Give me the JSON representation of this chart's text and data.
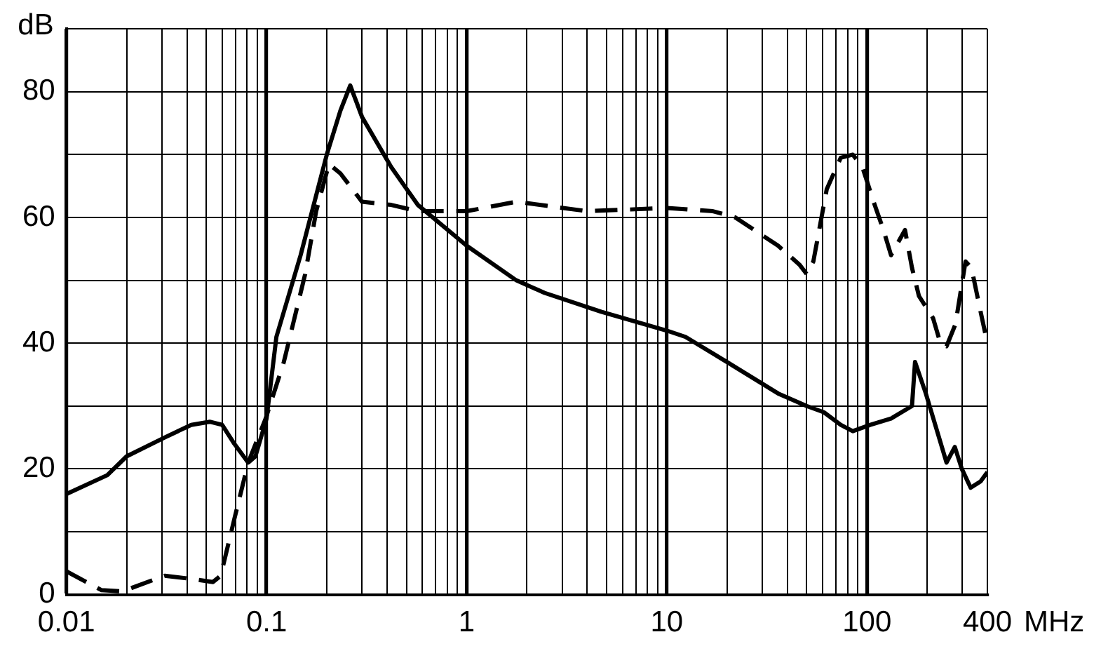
{
  "chart_data": {
    "type": "line",
    "xlabel": "MHz",
    "ylabel": "dB",
    "log": "x",
    "grid": true,
    "legend": false,
    "marker": "none",
    "xlim": [
      0.01,
      400
    ],
    "ylim": [
      0,
      90
    ],
    "xticks": [
      0.01,
      {
        "value": 0.02,
        "label": null
      },
      {
        "value": 0.03,
        "label": null
      },
      {
        "value": 0.04,
        "label": null
      },
      {
        "value": 0.05,
        "label": null
      },
      {
        "value": 0.06,
        "label": null
      },
      {
        "value": 0.07,
        "label": null
      },
      {
        "value": 0.08,
        "label": null
      },
      {
        "value": 0.09,
        "label": null
      },
      0.1,
      {
        "value": 0.2,
        "label": null
      },
      {
        "value": 0.3,
        "label": null
      },
      {
        "value": 0.4,
        "label": null
      },
      {
        "value": 0.5,
        "label": null
      },
      {
        "value": 0.6,
        "label": null
      },
      {
        "value": 0.7,
        "label": null
      },
      {
        "value": 0.8,
        "label": null
      },
      {
        "value": 0.9,
        "label": null
      },
      1,
      {
        "value": 2,
        "label": null
      },
      {
        "value": 3,
        "label": null
      },
      {
        "value": 4,
        "label": null
      },
      {
        "value": 5,
        "label": null
      },
      {
        "value": 6,
        "label": null
      },
      {
        "value": 7,
        "label": null
      },
      {
        "value": 8,
        "label": null
      },
      {
        "value": 9,
        "label": null
      },
      10,
      {
        "value": 20,
        "label": null
      },
      {
        "value": 30,
        "label": null
      },
      {
        "value": 40,
        "label": null
      },
      {
        "value": 50,
        "label": null
      },
      {
        "value": 60,
        "label": null
      },
      {
        "value": 70,
        "label": null
      },
      {
        "value": 80,
        "label": null
      },
      {
        "value": 90,
        "label": null
      },
      100,
      {
        "value": 200,
        "label": null
      },
      {
        "value": 300,
        "label": null
      },
      400
    ],
    "yticks": [
      0,
      {
        "value": 10,
        "label": null
      },
      20,
      {
        "value": 30,
        "label": null
      },
      40,
      {
        "value": 50,
        "label": null
      },
      60,
      {
        "value": 70,
        "label": null
      },
      80,
      {
        "value": 90,
        "label": null
      }
    ],
    "series": [
      {
        "color": "#000000",
        "line_style": "solid",
        "x": [
          0.01,
          0.016,
          0.02,
          0.031,
          0.042,
          0.052,
          0.06,
          0.069,
          0.081,
          0.088,
          0.1,
          0.112,
          0.148,
          0.2,
          0.234,
          0.262,
          0.3,
          0.42,
          0.57,
          1,
          1.77,
          2.45,
          4.7,
          10,
          12.4,
          20,
          36,
          50,
          61,
          74,
          85,
          104,
          132,
          168,
          174,
          197,
          250,
          275,
          298,
          330,
          370,
          400
        ],
        "values": [
          16,
          19,
          22,
          25,
          27,
          27.5,
          27,
          24,
          21,
          22,
          28,
          41,
          54,
          70,
          77,
          81,
          76,
          68,
          62,
          55.5,
          50,
          48,
          45,
          42,
          41,
          37,
          32,
          30,
          29,
          27,
          26,
          27,
          28,
          30,
          37,
          32,
          21,
          23.5,
          20,
          17,
          18,
          19.5
        ]
      },
      {
        "color": "#000000",
        "line_style": "dashed",
        "x": [
          0.01,
          0.015,
          0.019,
          0.031,
          0.042,
          0.054,
          0.059,
          0.069,
          0.081,
          0.099,
          0.122,
          0.156,
          0.177,
          0.205,
          0.234,
          0.3,
          0.42,
          0.57,
          1,
          1.77,
          4,
          10,
          17,
          22,
          36,
          46,
          50,
          54,
          63,
          74,
          85,
          95,
          108,
          121,
          132,
          155,
          168,
          182,
          214,
          233,
          250,
          277,
          311,
          333,
          370,
          400
        ],
        "values": [
          3.7,
          0.7,
          0.5,
          3,
          2.5,
          2,
          3,
          12,
          21,
          28,
          37,
          51,
          61,
          68.5,
          67,
          62.5,
          62,
          61,
          61,
          62.5,
          61,
          61.5,
          61,
          60,
          55.5,
          52.5,
          51,
          53,
          64.5,
          69.5,
          70,
          68,
          62.5,
          58,
          54,
          58,
          52,
          47.5,
          44,
          40,
          39.5,
          43,
          53,
          52,
          45,
          40
        ]
      }
    ]
  }
}
